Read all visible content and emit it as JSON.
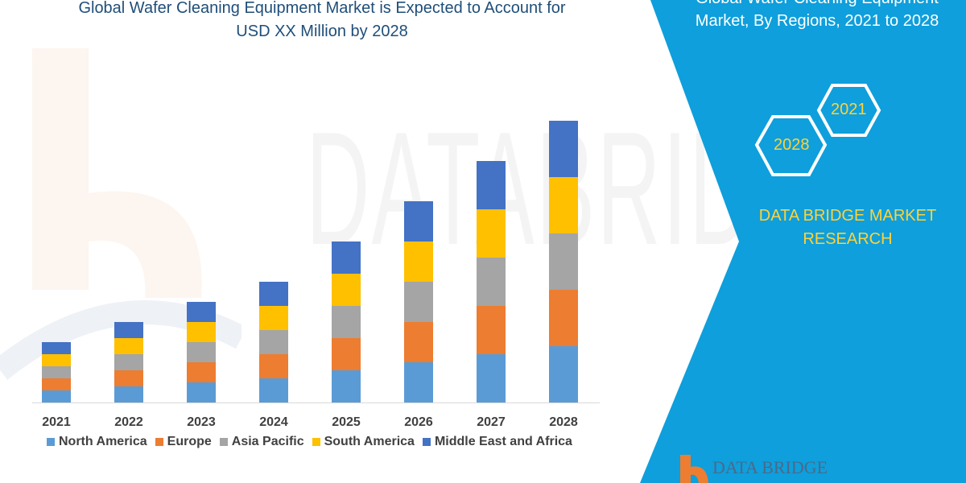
{
  "title_lines": [
    "Global Wafer Cleaning Equipment Market is Expected to Account for",
    "USD XX Million by 2028"
  ],
  "panel": {
    "title_lines": [
      "Global Wafer Cleaning Equipment",
      "Market, By Regions, 2021 to 2028"
    ],
    "hex_years": [
      "2021",
      "2028"
    ],
    "brand_lines": [
      "DATA BRIDGE MARKET",
      "RESEARCH"
    ],
    "logo_text": "DATA BRIDGE",
    "watermark": "DATABRIDGE",
    "panel_color": "#0e9fdc"
  },
  "chart_data": {
    "type": "bar",
    "stacked": true,
    "title": "Global Wafer Cleaning Equipment Market is Expected to Account for USD XX Million by 2028",
    "xlabel": "",
    "ylabel": "",
    "y_axis_shown": false,
    "grid": false,
    "legend_placement": "bottom",
    "categories": [
      "2021",
      "2022",
      "2023",
      "2024",
      "2025",
      "2026",
      "2027",
      "2028"
    ],
    "series": [
      {
        "name": "North America",
        "color": "#5b9bd5",
        "values": [
          15,
          20,
          25,
          30,
          40,
          50,
          60,
          70
        ]
      },
      {
        "name": "Europe",
        "color": "#ed7d31",
        "values": [
          15,
          20,
          25,
          30,
          40,
          50,
          60,
          70
        ]
      },
      {
        "name": "Asia Pacific",
        "color": "#a5a5a5",
        "values": [
          15,
          20,
          25,
          30,
          40,
          50,
          60,
          70
        ]
      },
      {
        "name": "South America",
        "color": "#ffc000",
        "values": [
          15,
          20,
          25,
          30,
          40,
          50,
          60,
          70
        ]
      },
      {
        "name": "Middle East and Africa",
        "color": "#4472c4",
        "values": [
          15,
          20,
          25,
          30,
          40,
          50,
          60,
          70
        ]
      }
    ]
  }
}
